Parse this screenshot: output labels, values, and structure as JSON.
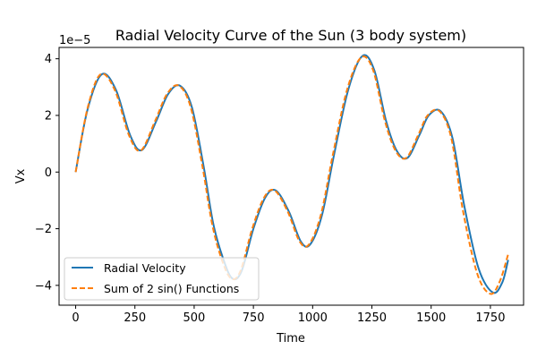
{
  "chart_data": {
    "type": "line",
    "title": "Radial Velocity Curve of the Sun (3 body system)",
    "xlabel": "Time",
    "ylabel": "Vx",
    "y_offset_label": "1e−5",
    "y_scale": 1e-05,
    "xlim": [
      -70,
      1890
    ],
    "ylim": [
      -4.7,
      4.4
    ],
    "xticks": [
      0,
      250,
      500,
      750,
      1000,
      1250,
      1500,
      1750
    ],
    "xtick_labels": [
      "0",
      "250",
      "500",
      "750",
      "1000",
      "1250",
      "1500",
      "1750"
    ],
    "yticks": [
      -4,
      -2,
      0,
      2,
      4
    ],
    "ytick_labels": [
      "−4",
      "−2",
      "0",
      "2",
      "4"
    ],
    "grid": false,
    "legend_position": "lower-left",
    "series": [
      {
        "name": "Radial Velocity",
        "color": "#1f77b4",
        "style": "solid",
        "x": [
          0,
          50,
          110,
          170,
          230,
          280,
          340,
          390,
          440,
          490,
          540,
          580,
          620,
          660,
          700,
          750,
          800,
          845,
          900,
          950,
          990,
          1040,
          1090,
          1150,
          1210,
          1260,
          1310,
          1355,
          1400,
          1450,
          1490,
          1540,
          1590,
          1640,
          1700,
          1760,
          1800,
          1825
        ],
        "y": [
          0.0,
          2.2,
          3.45,
          2.9,
          1.3,
          0.78,
          1.8,
          2.75,
          3.05,
          2.3,
          0.2,
          -1.8,
          -3.0,
          -3.75,
          -3.5,
          -2.0,
          -0.9,
          -0.65,
          -1.4,
          -2.45,
          -2.55,
          -1.5,
          0.6,
          2.9,
          4.1,
          3.6,
          1.8,
          0.75,
          0.5,
          1.3,
          2.0,
          2.15,
          1.2,
          -1.2,
          -3.4,
          -4.25,
          -3.9,
          -3.1
        ]
      },
      {
        "name": "Sum of 2 sin() Functions",
        "color": "#ff7f0e",
        "style": "dashed",
        "x": [
          0,
          50,
          105,
          165,
          225,
          275,
          335,
          385,
          435,
          485,
          535,
          575,
          615,
          655,
          695,
          745,
          795,
          840,
          895,
          945,
          985,
          1035,
          1085,
          1145,
          1205,
          1255,
          1305,
          1350,
          1395,
          1445,
          1485,
          1535,
          1585,
          1635,
          1695,
          1750,
          1790,
          1825
        ],
        "y": [
          0.0,
          2.25,
          3.45,
          2.9,
          1.3,
          0.76,
          1.8,
          2.75,
          3.05,
          2.3,
          0.2,
          -1.8,
          -3.05,
          -3.75,
          -3.5,
          -2.0,
          -0.9,
          -0.65,
          -1.4,
          -2.45,
          -2.55,
          -1.5,
          0.6,
          2.9,
          4.05,
          3.6,
          1.8,
          0.75,
          0.5,
          1.3,
          2.0,
          2.15,
          1.2,
          -1.4,
          -3.6,
          -4.3,
          -3.85,
          -2.9
        ]
      }
    ]
  }
}
